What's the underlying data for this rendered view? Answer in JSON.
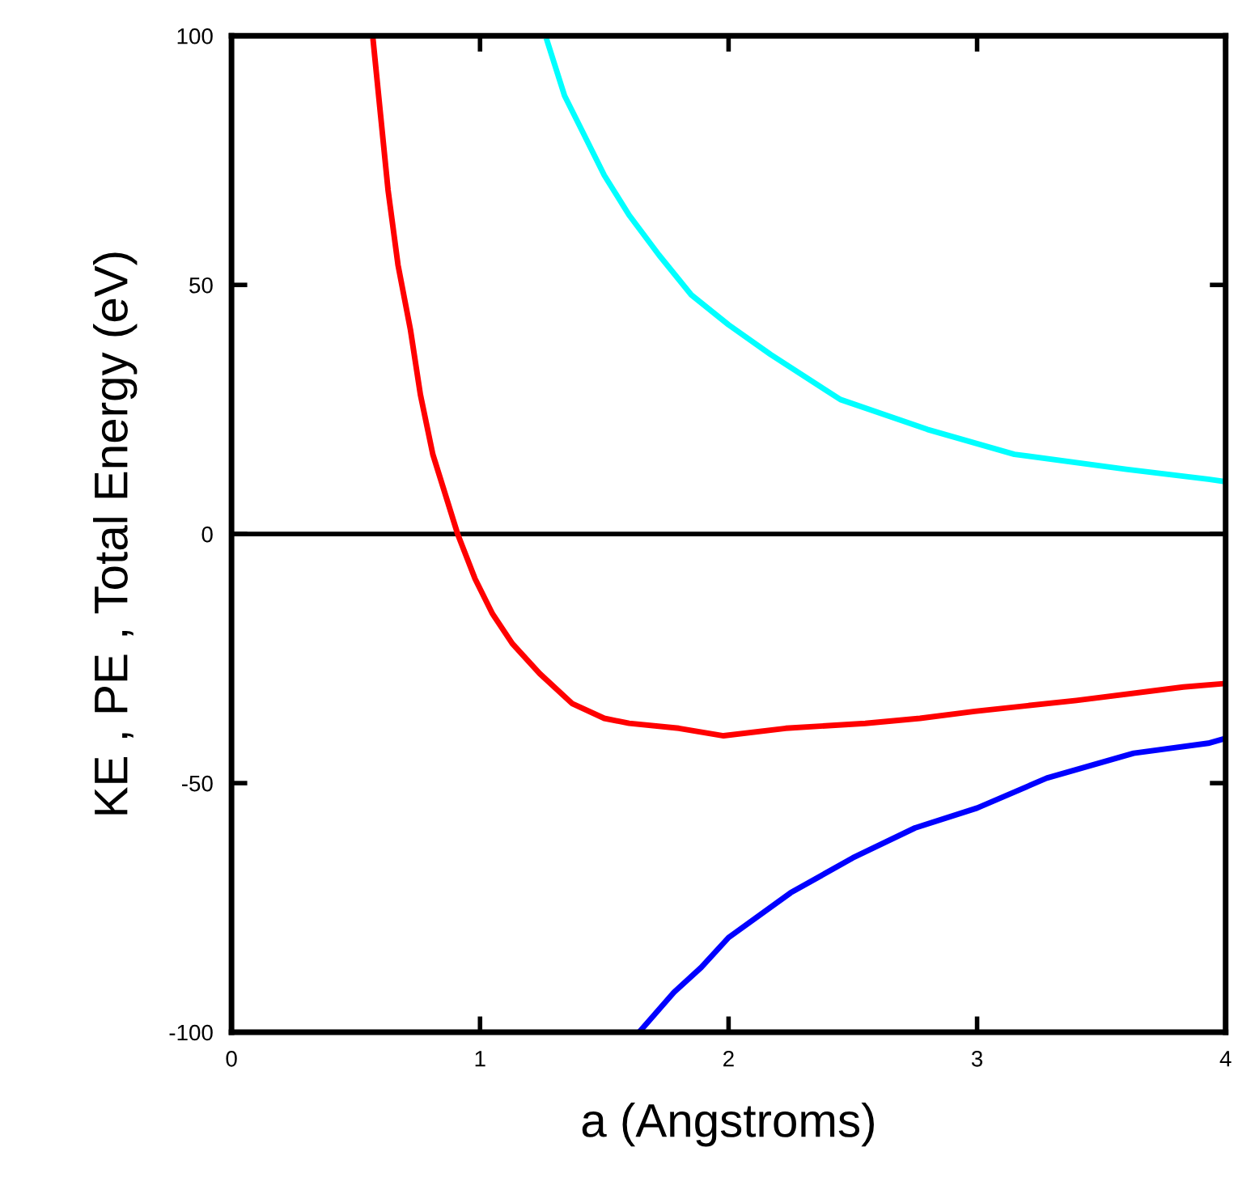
{
  "chart_data": {
    "type": "line",
    "xlabel": "a (Angstroms)",
    "ylabel": "KE , PE , Total Energy (eV)",
    "xlim": [
      0,
      4
    ],
    "ylim": [
      -100,
      100
    ],
    "xticks": [
      0,
      1,
      2,
      3,
      4
    ],
    "yticks": [
      -100,
      -50,
      0,
      50,
      100
    ],
    "grid": false,
    "marker": "none",
    "line_style": "solid",
    "ref_lines": [
      {
        "axis": "y",
        "value": 0,
        "color": "#000000"
      }
    ],
    "series": [
      {
        "color": "#00ffff",
        "x": [
          1.27,
          1.34,
          1.41,
          1.5,
          1.6,
          1.72,
          1.85,
          2.0,
          2.17,
          2.45,
          2.8,
          3.15,
          3.6,
          3.93,
          4.0
        ],
        "values": [
          99,
          88,
          81,
          72,
          64,
          56,
          48,
          42,
          36,
          27,
          21,
          16,
          13,
          11,
          10.5
        ]
      },
      {
        "color": "#0000ff",
        "x": [
          1.64,
          1.78,
          1.89,
          2.0,
          2.25,
          2.5,
          2.75,
          3.0,
          3.28,
          3.63,
          3.93,
          4.0
        ],
        "values": [
          -100,
          -92,
          -87,
          -81,
          -72,
          -65,
          -59,
          -55,
          -49,
          -44,
          -42,
          -41
        ]
      },
      {
        "color": "#ff0000",
        "x": [
          0.57,
          0.6,
          0.63,
          0.67,
          0.72,
          0.76,
          0.81,
          0.86,
          0.91,
          0.98,
          1.05,
          1.13,
          1.24,
          1.37,
          1.5,
          1.6,
          1.8,
          1.98,
          2.23,
          2.55,
          2.77,
          2.99,
          3.4,
          3.83,
          4.0
        ],
        "values": [
          99,
          84,
          69,
          54,
          41,
          28,
          16,
          8,
          0,
          -9,
          -16,
          -22,
          -28,
          -34,
          -37,
          -38,
          -39,
          -40.5,
          -39,
          -38,
          -37,
          -35.6,
          -33.4,
          -30.7,
          -30
        ]
      }
    ]
  }
}
